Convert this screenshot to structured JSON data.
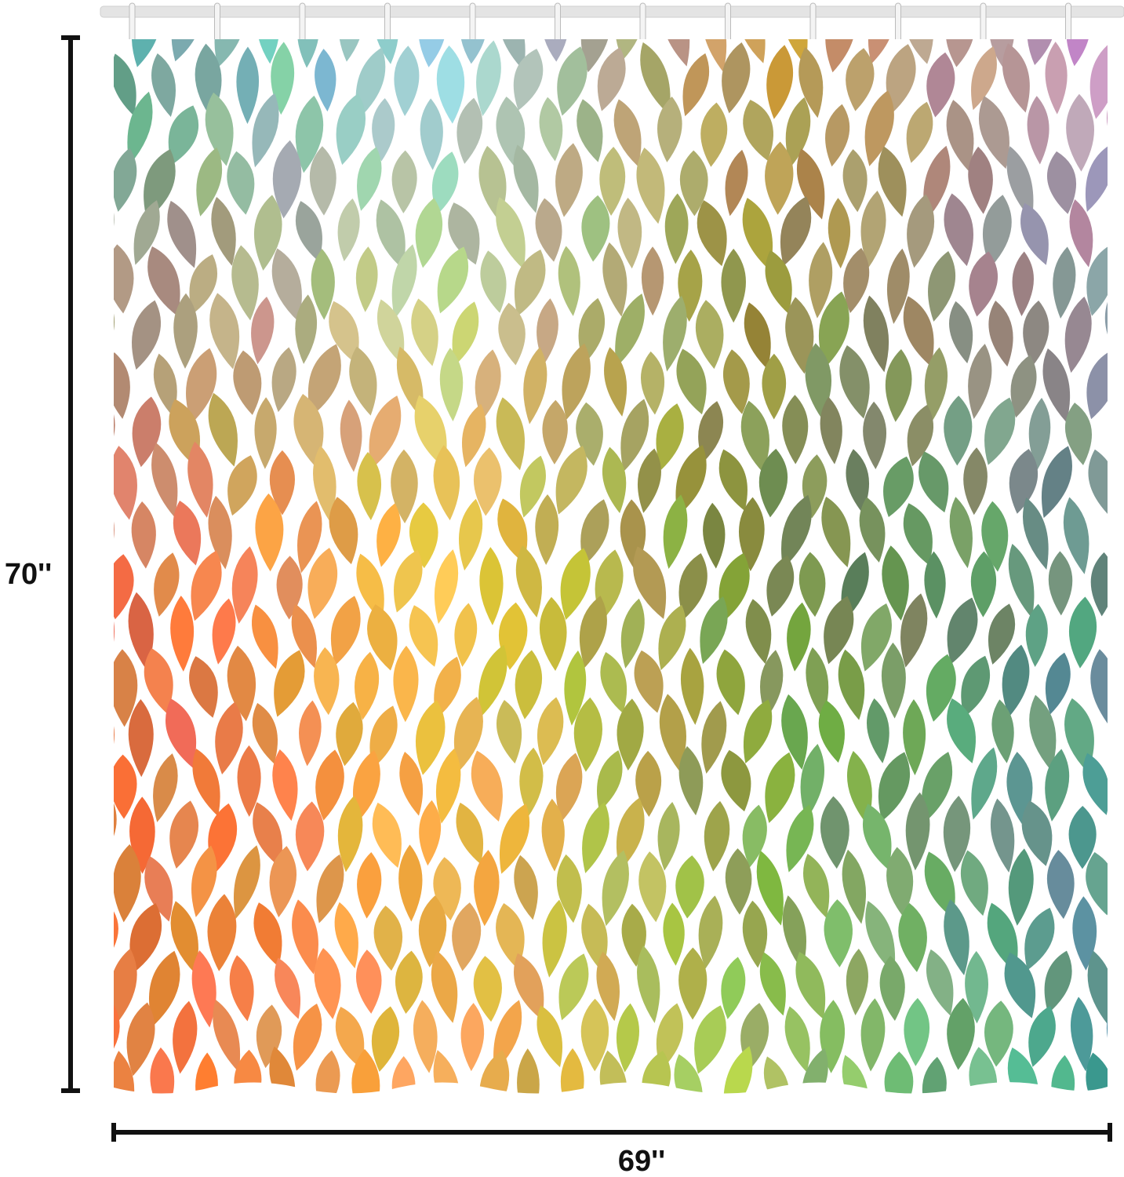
{
  "dimensions": {
    "height": "70''",
    "width": "69''"
  }
}
